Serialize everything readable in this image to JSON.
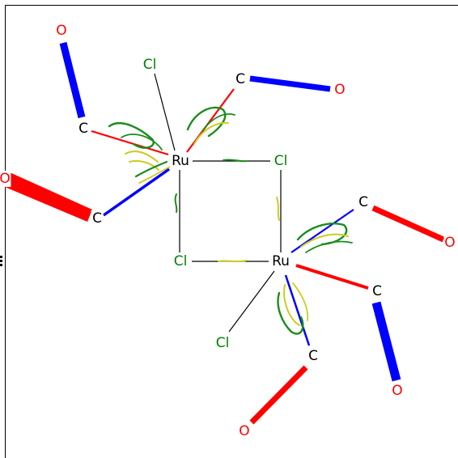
{
  "colors": {
    "carbon": "#000000",
    "oxygen": "#ff0000",
    "chlorine": "#008000",
    "ruthenium": "#000000",
    "bond_black": "#000000",
    "bond_red": "#ff0000",
    "bond_blue": "#0000ff",
    "arrow_green": "#1a8c1a",
    "arrow_yellow": "#cccc22"
  },
  "atoms": [
    {
      "id": "ru1",
      "element": "Ru",
      "label": "Ru"
    },
    {
      "id": "ru2",
      "element": "Ru",
      "label": "Ru"
    },
    {
      "id": "cl_bridge_right",
      "element": "Cl",
      "label": "Cl"
    },
    {
      "id": "cl_bridge_left",
      "element": "Cl",
      "label": "Cl"
    },
    {
      "id": "cl_term_1",
      "element": "Cl",
      "label": "Cl"
    },
    {
      "id": "cl_term_2",
      "element": "Cl",
      "label": "Cl"
    },
    {
      "id": "c1",
      "element": "C",
      "label": "C"
    },
    {
      "id": "c2",
      "element": "C",
      "label": "C"
    },
    {
      "id": "c3",
      "element": "C",
      "label": "C"
    },
    {
      "id": "c4",
      "element": "C",
      "label": "C"
    },
    {
      "id": "c5",
      "element": "C",
      "label": "C"
    },
    {
      "id": "c6",
      "element": "C",
      "label": "C"
    },
    {
      "id": "o1",
      "element": "O",
      "label": "O"
    },
    {
      "id": "o2",
      "element": "O",
      "label": "O"
    },
    {
      "id": "o3",
      "element": "O",
      "label": "O"
    },
    {
      "id": "o4",
      "element": "O",
      "label": "O"
    },
    {
      "id": "o5",
      "element": "O",
      "label": "O"
    },
    {
      "id": "o6",
      "element": "O",
      "label": "O"
    }
  ]
}
